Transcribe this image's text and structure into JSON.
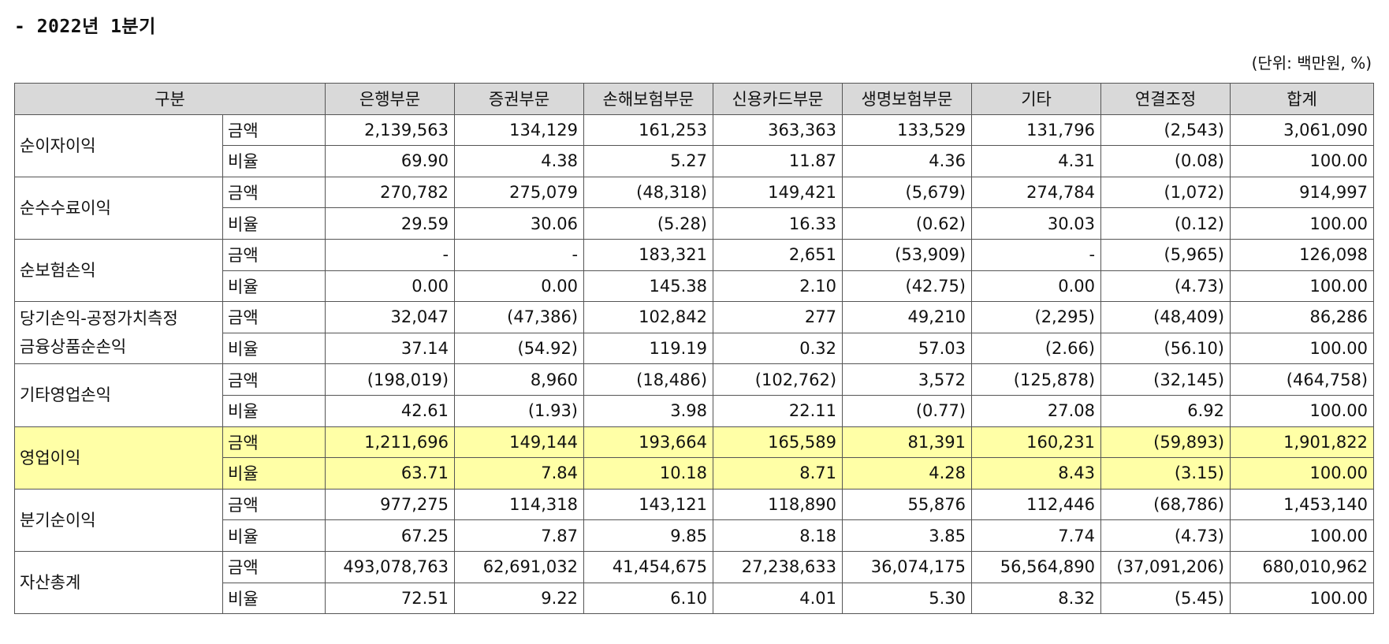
{
  "page": {
    "title": "- 2022년 1분기",
    "unit": "(단위: 백만원, %)"
  },
  "table": {
    "headers": [
      "구분",
      "은행부문",
      "증권부문",
      "손해보험부문",
      "신용카드부문",
      "생명보험부문",
      "기타",
      "연결조정",
      "합계"
    ],
    "rows": [
      {
        "category_lines": [
          "순이자이익"
        ],
        "highlight": false,
        "amount_label": "금액",
        "amount": [
          "2,139,563",
          "134,129",
          "161,253",
          "363,363",
          "133,529",
          "131,796",
          "(2,543)",
          "3,061,090"
        ],
        "ratio_label": "비율",
        "ratio": [
          "69.90",
          "4.38",
          "5.27",
          "11.87",
          "4.36",
          "4.31",
          "(0.08)",
          "100.00"
        ]
      },
      {
        "category_lines": [
          "순수수료이익"
        ],
        "highlight": false,
        "amount_label": "금액",
        "amount": [
          "270,782",
          "275,079",
          "(48,318)",
          "149,421",
          "(5,679)",
          "274,784",
          "(1,072)",
          "914,997"
        ],
        "ratio_label": "비율",
        "ratio": [
          "29.59",
          "30.06",
          "(5.28)",
          "16.33",
          "(0.62)",
          "30.03",
          "(0.12)",
          "100.00"
        ]
      },
      {
        "category_lines": [
          "순보험손익"
        ],
        "highlight": false,
        "amount_label": "금액",
        "amount": [
          "-",
          "-",
          "183,321",
          "2,651",
          "(53,909)",
          "-",
          "(5,965)",
          "126,098"
        ],
        "ratio_label": "비율",
        "ratio": [
          "0.00",
          "0.00",
          "145.38",
          "2.10",
          "(42.75)",
          "0.00",
          "(4.73)",
          "100.00"
        ]
      },
      {
        "category_lines": [
          "당기손익-공정가치측정",
          "금융상품순손익"
        ],
        "highlight": false,
        "amount_label": "금액",
        "amount": [
          "32,047",
          "(47,386)",
          "102,842",
          "277",
          "49,210",
          "(2,295)",
          "(48,409)",
          "86,286"
        ],
        "ratio_label": "비율",
        "ratio": [
          "37.14",
          "(54.92)",
          "119.19",
          "0.32",
          "57.03",
          "(2.66)",
          "(56.10)",
          "100.00"
        ]
      },
      {
        "category_lines": [
          "기타영업손익"
        ],
        "highlight": false,
        "amount_label": "금액",
        "amount": [
          "(198,019)",
          "8,960",
          "(18,486)",
          "(102,762)",
          "3,572",
          "(125,878)",
          "(32,145)",
          "(464,758)"
        ],
        "ratio_label": "비율",
        "ratio": [
          "42.61",
          "(1.93)",
          "3.98",
          "22.11",
          "(0.77)",
          "27.08",
          "6.92",
          "100.00"
        ]
      },
      {
        "category_lines": [
          "영업이익"
        ],
        "highlight": true,
        "amount_label": "금액",
        "amount": [
          "1,211,696",
          "149,144",
          "193,664",
          "165,589",
          "81,391",
          "160,231",
          "(59,893)",
          "1,901,822"
        ],
        "ratio_label": "비율",
        "ratio": [
          "63.71",
          "7.84",
          "10.18",
          "8.71",
          "4.28",
          "8.43",
          "(3.15)",
          "100.00"
        ]
      },
      {
        "category_lines": [
          "분기순이익"
        ],
        "highlight": false,
        "amount_label": "금액",
        "amount": [
          "977,275",
          "114,318",
          "143,121",
          "118,890",
          "55,876",
          "112,446",
          "(68,786)",
          "1,453,140"
        ],
        "ratio_label": "비율",
        "ratio": [
          "67.25",
          "7.87",
          "9.85",
          "8.18",
          "3.85",
          "7.74",
          "(4.73)",
          "100.00"
        ]
      },
      {
        "category_lines": [
          "자산총계"
        ],
        "highlight": false,
        "amount_label": "금액",
        "amount": [
          "493,078,763",
          "62,691,032",
          "41,454,675",
          "27,238,633",
          "36,074,175",
          "56,564,890",
          "(37,091,206)",
          "680,010,962"
        ],
        "ratio_label": "비율",
        "ratio": [
          "72.51",
          "9.22",
          "6.10",
          "4.01",
          "5.30",
          "8.32",
          "(5.45)",
          "100.00"
        ]
      }
    ]
  }
}
